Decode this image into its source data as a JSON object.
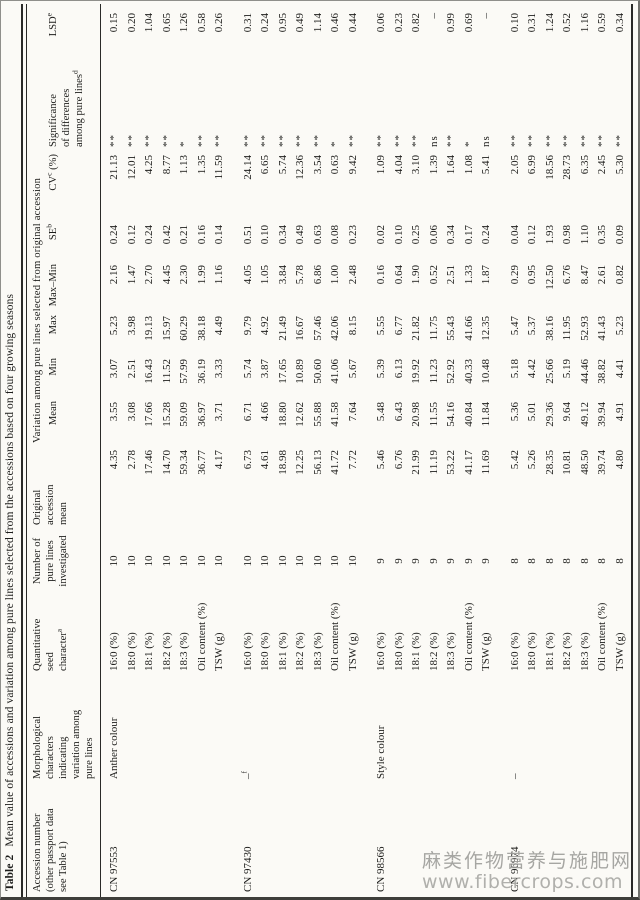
{
  "title": {
    "prefix": "Table 2",
    "text": "Mean value of accessions and variation among pure lines selected from the accessions based on four growing seasons"
  },
  "watermark": {
    "line1": "麻类作物营养与施肥网",
    "line2": "www.fibercrops.com"
  },
  "table": {
    "headers": {
      "accession": {
        "lines": [
          "Accession number",
          "(other passport data",
          "see Table 1)"
        ]
      },
      "morphology": {
        "lines": [
          "Morphological",
          "characters",
          "indicating",
          "variation among",
          "pure lines"
        ]
      },
      "character": {
        "lines": [
          "Quantitative",
          "seed",
          "character"
        ],
        "sup": "a"
      },
      "n": {
        "lines": [
          "Number of",
          "pure lines",
          "investigated"
        ]
      },
      "orig": {
        "lines": [
          "Original",
          "accession",
          "mean"
        ]
      },
      "variation_group": "Variation among pure lines selected from original accession",
      "mean": "Mean",
      "min": "Min",
      "max": "Max",
      "range": "Max–Min",
      "se": {
        "label": "SE",
        "sup": "b"
      },
      "cv": {
        "label": "CV",
        "sup": "c",
        "suffix": " (%)"
      },
      "sig": {
        "lines": [
          "Significance",
          "of differences",
          "among pure lines"
        ],
        "sup": "d"
      },
      "lsd": {
        "label": "LSD",
        "sup": "e"
      }
    },
    "groups": [
      {
        "accession": "CN 97553",
        "morphology": "Anther colour",
        "rows": [
          [
            "16:0 (%)",
            "10",
            "4.35",
            "3.55",
            "3.07",
            "5.23",
            "2.16",
            "0.24",
            "21.13",
            "**",
            "0.15"
          ],
          [
            "18:0 (%)",
            "10",
            "2.78",
            "3.08",
            "2.51",
            "3.98",
            "1.47",
            "0.12",
            "12.01",
            "**",
            "0.20"
          ],
          [
            "18:1 (%)",
            "10",
            "17.46",
            "17.66",
            "16.43",
            "19.13",
            "2.70",
            "0.24",
            "4.25",
            "**",
            "1.04"
          ],
          [
            "18:2 (%)",
            "10",
            "14.70",
            "15.28",
            "11.52",
            "15.97",
            "4.45",
            "0.42",
            "8.77",
            "**",
            "0.65"
          ],
          [
            "18:3 (%)",
            "10",
            "59.34",
            "59.09",
            "57.99",
            "60.29",
            "2.30",
            "0.21",
            "1.13",
            "*",
            "1.26"
          ],
          [
            "Oil content (%)",
            "10",
            "36.77",
            "36.97",
            "36.19",
            "38.18",
            "1.99",
            "0.16",
            "1.35",
            "**",
            "0.58"
          ],
          [
            "TSW (g)",
            "10",
            "4.17",
            "3.71",
            "3.33",
            "4.49",
            "1.16",
            "0.14",
            "11.59",
            "**",
            "0.26"
          ]
        ]
      },
      {
        "accession": "CN 97430",
        "morphology": "–",
        "morphology_sup": "f",
        "rows": [
          [
            "16:0 (%)",
            "10",
            "6.73",
            "6.71",
            "5.74",
            "9.79",
            "4.05",
            "0.51",
            "24.14",
            "**",
            "0.31"
          ],
          [
            "18:0 (%)",
            "10",
            "4.61",
            "4.66",
            "3.87",
            "4.92",
            "1.05",
            "0.10",
            "6.65",
            "**",
            "0.24"
          ],
          [
            "18:1 (%)",
            "10",
            "18.98",
            "18.80",
            "17.65",
            "21.49",
            "3.84",
            "0.34",
            "5.74",
            "**",
            "0.95"
          ],
          [
            "18:2 (%)",
            "10",
            "12.25",
            "12.62",
            "10.89",
            "16.67",
            "5.78",
            "0.49",
            "12.36",
            "**",
            "0.49"
          ],
          [
            "18:3 (%)",
            "10",
            "56.13",
            "55.88",
            "50.60",
            "57.46",
            "6.86",
            "0.63",
            "3.54",
            "**",
            "1.14"
          ],
          [
            "Oil content (%)",
            "10",
            "41.72",
            "41.58",
            "41.06",
            "42.06",
            "1.00",
            "0.08",
            "0.63",
            "*",
            "0.46"
          ],
          [
            "TSW (g)",
            "10",
            "7.72",
            "7.64",
            "5.67",
            "8.15",
            "2.48",
            "0.23",
            "9.42",
            "**",
            "0.44"
          ]
        ]
      },
      {
        "accession": "CN 98566",
        "morphology": "Style colour",
        "rows": [
          [
            "16:0 (%)",
            "9",
            "5.46",
            "5.48",
            "5.39",
            "5.55",
            "0.16",
            "0.02",
            "1.09",
            "**",
            "0.06"
          ],
          [
            "18:0 (%)",
            "9",
            "6.76",
            "6.43",
            "6.13",
            "6.77",
            "0.64",
            "0.10",
            "4.04",
            "**",
            "0.23"
          ],
          [
            "18:1 (%)",
            "9",
            "21.99",
            "20.98",
            "19.92",
            "21.82",
            "1.90",
            "0.25",
            "3.10",
            "**",
            "0.82"
          ],
          [
            "18:2 (%)",
            "9",
            "11.19",
            "11.55",
            "11.23",
            "11.75",
            "0.52",
            "0.06",
            "1.39",
            "ns",
            "–"
          ],
          [
            "18:3 (%)",
            "9",
            "53.22",
            "54.16",
            "52.92",
            "55.43",
            "2.51",
            "0.34",
            "1.64",
            "**",
            "0.99"
          ],
          [
            "Oil content (%)",
            "9",
            "41.17",
            "40.84",
            "40.33",
            "41.66",
            "1.33",
            "0.17",
            "1.08",
            "*",
            "0.69"
          ],
          [
            "TSW (g)",
            "9",
            "11.69",
            "11.84",
            "10.48",
            "12.35",
            "1.87",
            "0.24",
            "5.41",
            "ns",
            "–"
          ]
        ]
      },
      {
        "accession": "CN 96974",
        "morphology": "–",
        "rows": [
          [
            "16:0 (%)",
            "8",
            "5.42",
            "5.36",
            "5.18",
            "5.47",
            "0.29",
            "0.04",
            "2.05",
            "**",
            "0.10"
          ],
          [
            "18:0 (%)",
            "8",
            "5.26",
            "5.01",
            "4.42",
            "5.37",
            "0.95",
            "0.12",
            "6.99",
            "**",
            "0.31"
          ],
          [
            "18:1 (%)",
            "8",
            "28.35",
            "29.36",
            "25.66",
            "38.16",
            "12.50",
            "1.93",
            "18.56",
            "**",
            "1.24"
          ],
          [
            "18:2 (%)",
            "8",
            "10.81",
            "9.64",
            "5.19",
            "11.95",
            "6.76",
            "0.98",
            "28.73",
            "**",
            "0.52"
          ],
          [
            "18:3 (%)",
            "8",
            "48.50",
            "49.12",
            "44.46",
            "52.93",
            "8.47",
            "1.10",
            "6.35",
            "**",
            "1.16"
          ],
          [
            "Oil content (%)",
            "8",
            "39.74",
            "39.94",
            "38.82",
            "41.43",
            "2.61",
            "0.35",
            "2.45",
            "**",
            "0.59"
          ],
          [
            "TSW (g)",
            "8",
            "4.80",
            "4.91",
            "4.41",
            "5.23",
            "0.82",
            "0.09",
            "5.30",
            "**",
            "0.34"
          ]
        ]
      }
    ]
  }
}
